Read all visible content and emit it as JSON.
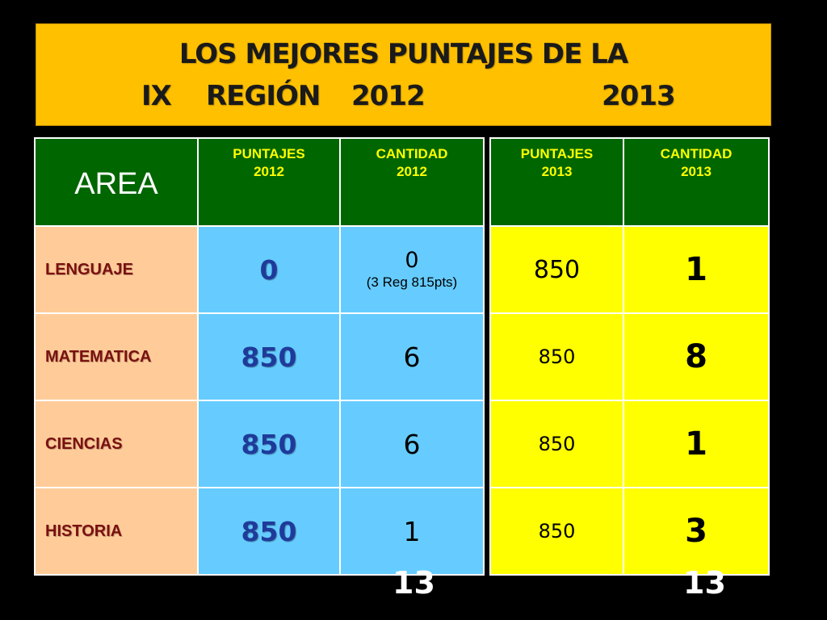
{
  "title": {
    "line1": "LOS  MEJORES PUNTAJES DE  LA",
    "line2_prefix": "IX",
    "line2_region": "REGIÓN",
    "line2_year1": "2012",
    "line2_year2": "2013"
  },
  "colors": {
    "banner": "#ffc000",
    "header": "#006600",
    "header_text": "#ffff00",
    "area_cell": "#ffcc99",
    "area_text": "#7a1010",
    "col_2012": "#66ccff",
    "col_2013": "#ffff00"
  },
  "table2012": {
    "headers": {
      "area": "AREA",
      "scores_label": "PUNTAJES",
      "scores_year": "2012",
      "qty_label": "CANTIDAD",
      "qty_year": "2012"
    },
    "rows": [
      {
        "area": "LENGUAJE",
        "score": "0",
        "qty": "0",
        "note": "(3 Reg 815pts)"
      },
      {
        "area": "MATEMATICA",
        "score": "850",
        "qty": "6",
        "note": ""
      },
      {
        "area": "CIENCIAS",
        "score": "850",
        "qty": "6",
        "note": ""
      },
      {
        "area": "HISTORIA",
        "score": "850",
        "qty": "1",
        "note": ""
      }
    ],
    "total": "13"
  },
  "table2013": {
    "headers": {
      "scores_label": "PUNTAJES",
      "scores_year": "2013",
      "qty_label": "CANTIDAD",
      "qty_year": "2013"
    },
    "rows": [
      {
        "score": "850",
        "qty": "1"
      },
      {
        "score": "850",
        "qty": "8"
      },
      {
        "score": "850",
        "qty": "1"
      },
      {
        "score": "850",
        "qty": "3"
      }
    ],
    "total": "13"
  }
}
